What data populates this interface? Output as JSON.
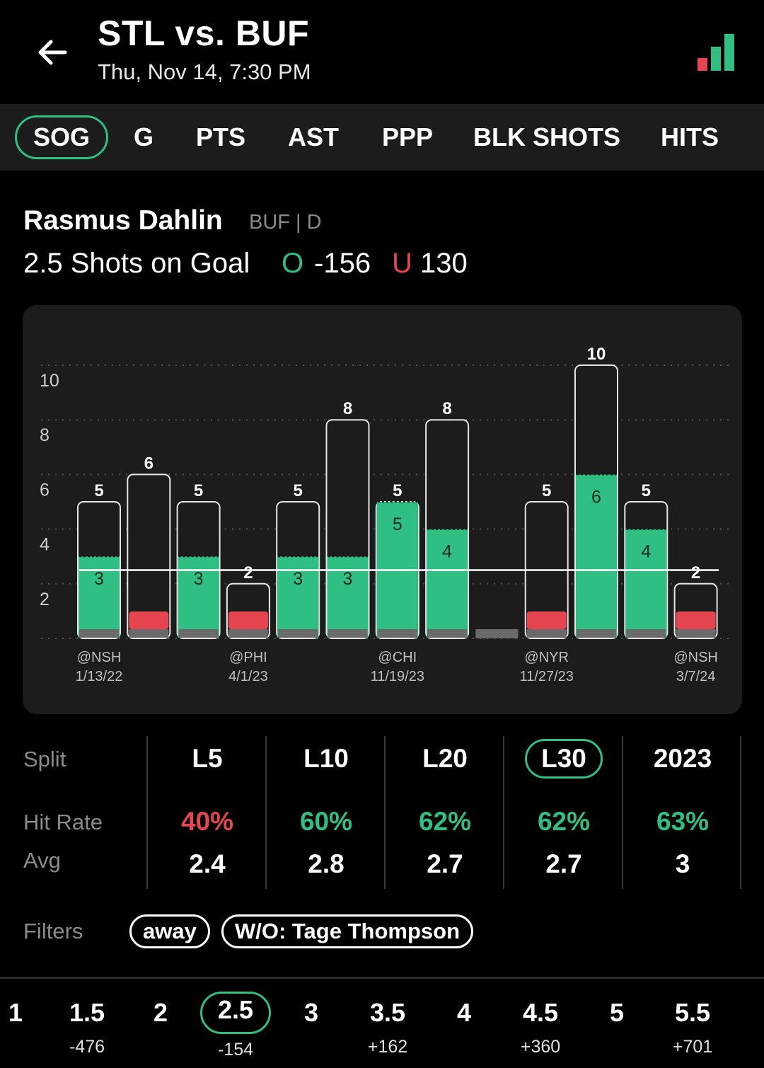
{
  "header": {
    "title": "STL vs. BUF",
    "subtitle": "Thu, Nov 14, 7:30 PM",
    "colors": {
      "green": "#2fbf83",
      "red": "#e5454f"
    }
  },
  "tabs": [
    {
      "label": "SOG",
      "active": true
    },
    {
      "label": "G",
      "active": false
    },
    {
      "label": "PTS",
      "active": false
    },
    {
      "label": "AST",
      "active": false
    },
    {
      "label": "PPP",
      "active": false
    },
    {
      "label": "BLK SHOTS",
      "active": false
    },
    {
      "label": "HITS",
      "active": false
    }
  ],
  "player": {
    "name": "Rasmus Dahlin",
    "team": "BUF | D",
    "prop": "2.5 Shots on Goal",
    "over_letter": "O",
    "over_odds": "-156",
    "under_letter": "U",
    "under_odds": "130"
  },
  "chart_data": {
    "type": "bar",
    "line": 2.5,
    "ylim": [
      0,
      11
    ],
    "yticks": [
      2,
      4,
      6,
      8,
      10
    ],
    "grid": true,
    "games": [
      {
        "total": 5,
        "sog": 3
      },
      {
        "total": 6,
        "sog": 0
      },
      {
        "total": 5,
        "sog": 3
      },
      {
        "total": 2,
        "sog": 0
      },
      {
        "total": 5,
        "sog": 3
      },
      {
        "total": 8,
        "sog": 3
      },
      {
        "total": 5,
        "sog": 5
      },
      {
        "total": 8,
        "sog": 4
      },
      {
        "total": null,
        "sog": 0
      },
      {
        "total": 5,
        "sog": 0
      },
      {
        "total": 10,
        "sog": 6
      },
      {
        "total": 5,
        "sog": 4
      },
      {
        "total": 2,
        "sog": 0
      }
    ],
    "x_labels": [
      {
        "index": 0,
        "opp": "@NSH",
        "date": "1/13/22"
      },
      {
        "index": 3,
        "opp": "@PHI",
        "date": "4/1/23"
      },
      {
        "index": 6,
        "opp": "@CHI",
        "date": "11/19/23"
      },
      {
        "index": 9,
        "opp": "@NYR",
        "date": "11/27/23"
      },
      {
        "index": 12,
        "opp": "@NSH",
        "date": "3/7/24"
      }
    ]
  },
  "splits": {
    "split_label": "Split",
    "hit_rate_label": "Hit Rate",
    "avg_label": "Avg",
    "columns": [
      {
        "label": "L5",
        "hit_rate": "40%",
        "hit_color": "#e5454f",
        "avg": "2.4",
        "active": false
      },
      {
        "label": "L10",
        "hit_rate": "60%",
        "hit_color": "#2fbf83",
        "avg": "2.8",
        "active": false
      },
      {
        "label": "L20",
        "hit_rate": "62%",
        "hit_color": "#2fbf83",
        "avg": "2.7",
        "active": false
      },
      {
        "label": "L30",
        "hit_rate": "62%",
        "hit_color": "#2fbf83",
        "avg": "2.7",
        "active": true
      },
      {
        "label": "2023",
        "hit_rate": "63%",
        "hit_color": "#2fbf83",
        "avg": "3",
        "active": false
      }
    ]
  },
  "filters": {
    "label": "Filters",
    "chips": [
      "away",
      "W/O: Tage Thompson"
    ]
  },
  "lines": [
    {
      "value": "1",
      "odds": ""
    },
    {
      "value": "1.5",
      "odds": "-476"
    },
    {
      "value": "2",
      "odds": ""
    },
    {
      "value": "2.5",
      "odds": "-154",
      "active": true
    },
    {
      "value": "3",
      "odds": ""
    },
    {
      "value": "3.5",
      "odds": "+162"
    },
    {
      "value": "4",
      "odds": ""
    },
    {
      "value": "4.5",
      "odds": "+360"
    },
    {
      "value": "5",
      "odds": ""
    },
    {
      "value": "5.5",
      "odds": "+701"
    }
  ]
}
